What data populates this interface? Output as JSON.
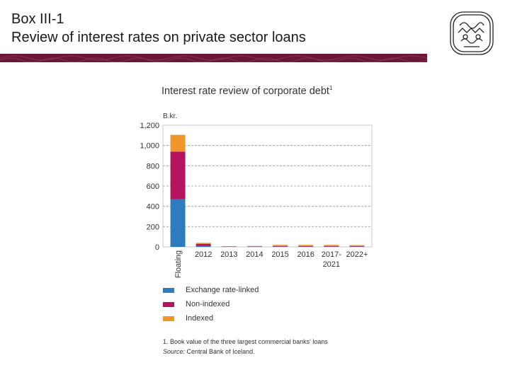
{
  "slide": {
    "title_line1": "Box III-1",
    "title_line2": "Review of interest rates on private sector loans"
  },
  "logo": {
    "icon": "central-bank-seal-logo"
  },
  "colors": {
    "banner": "#6b1637",
    "exchange_rate_linked": "#2e7bbf",
    "non_indexed": "#b5135e",
    "indexed": "#f0962a"
  },
  "chart_data": {
    "type": "bar",
    "stacked": true,
    "title": "Interest rate review of corporate debt",
    "title_footnote_mark": "1",
    "ylabel": "B.kr.",
    "ylim": [
      0,
      1200
    ],
    "yticks": [
      "0",
      "200",
      "400",
      "600",
      "800",
      "1,000",
      "1,200"
    ],
    "ytick_values": [
      0,
      200,
      400,
      600,
      800,
      1000,
      1200
    ],
    "grid": true,
    "categories": [
      "Floating",
      "2012",
      "2013",
      "2014",
      "2015",
      "2016",
      "2017-2021",
      "2022+"
    ],
    "category_lines": [
      [
        "Floating"
      ],
      [
        "2012"
      ],
      [
        "2013"
      ],
      [
        "2014"
      ],
      [
        "2015"
      ],
      [
        "2016"
      ],
      [
        "2017-",
        "2021"
      ],
      [
        "2022+"
      ]
    ],
    "series": [
      {
        "name": "Exchange rate-linked",
        "color": "#2e7bbf",
        "values": [
          470,
          10,
          3,
          3,
          3,
          3,
          3,
          3
        ]
      },
      {
        "name": "Non-indexed",
        "color": "#b5135e",
        "values": [
          470,
          20,
          2,
          3,
          5,
          5,
          5,
          5
        ]
      },
      {
        "name": "Indexed",
        "color": "#f0962a",
        "values": [
          165,
          10,
          2,
          3,
          12,
          12,
          12,
          10
        ]
      }
    ],
    "legend_position": "bottom-left",
    "footnote": "1. Book value of the three largest commercial banks' loans",
    "source_label": "Source:",
    "source_text": " Central Bank of Iceland."
  }
}
